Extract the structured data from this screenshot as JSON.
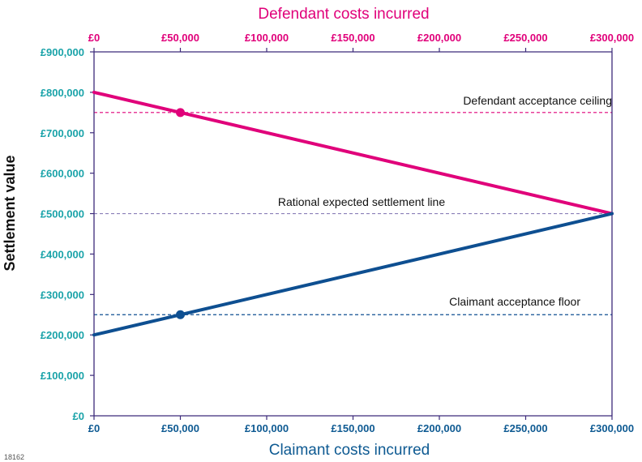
{
  "figure_id": "18162",
  "chart_data": {
    "type": "line",
    "xlabel": "Claimant costs incurred",
    "x2label": "Defendant costs incurred",
    "ylabel": "Settlement value",
    "xlim": [
      0,
      300000
    ],
    "ylim": [
      0,
      900000
    ],
    "x_ticks": [
      "£0",
      "£50,000",
      "£100,000",
      "£150,000",
      "£200,000",
      "£250,000",
      "£300,000"
    ],
    "x2_ticks": [
      "£0",
      "£50,000",
      "£100,000",
      "£150,000",
      "£200,000",
      "£250,000",
      "£300,000"
    ],
    "y_ticks": [
      "£0",
      "£100,000",
      "£200,000",
      "£300,000",
      "£400,000",
      "£500,000",
      "£600,000",
      "£700,000",
      "£800,000",
      "£900,000"
    ],
    "series": [
      {
        "key": "defendant",
        "color": "#e0007a",
        "x": [
          0,
          300000
        ],
        "y": [
          800000,
          500000
        ],
        "marker": [
          50000,
          750000
        ]
      },
      {
        "key": "claimant",
        "color": "#0e4f91",
        "x": [
          0,
          300000
        ],
        "y": [
          200000,
          500000
        ],
        "marker": [
          50000,
          250000
        ]
      }
    ],
    "reference_lines": [
      {
        "y": 750000,
        "label": "Defendant acceptance ceiling",
        "color": "#e0007a"
      },
      {
        "y": 500000,
        "label": "Rational expected settlement line",
        "color": "#8a80b8"
      },
      {
        "y": 250000,
        "label": "Claimant acceptance floor",
        "color": "#0e4f91"
      }
    ],
    "grid": false,
    "legend": "none"
  }
}
